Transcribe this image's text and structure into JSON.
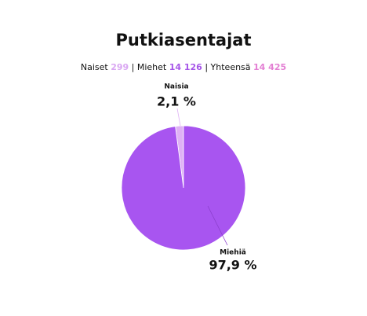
{
  "chart_data": {
    "type": "pie",
    "title": "Putkiasentajat",
    "summary": [
      {
        "name": "Naiset",
        "value": 299,
        "color": "#d9a6f2"
      },
      {
        "name": "Miehet",
        "value": 14126,
        "label": "14 126",
        "color": "#a656e8"
      },
      {
        "name": "Yhteensä",
        "value": 14425,
        "label": "14 425",
        "color": "#e37fd3"
      }
    ],
    "categories": [
      "Naisia",
      "Miehiä"
    ],
    "values": [
      2.1,
      97.9
    ],
    "value_labels": [
      "2,1 %",
      "97,9 %"
    ],
    "colors": [
      "#dfb1f5",
      "#a855f0"
    ]
  }
}
